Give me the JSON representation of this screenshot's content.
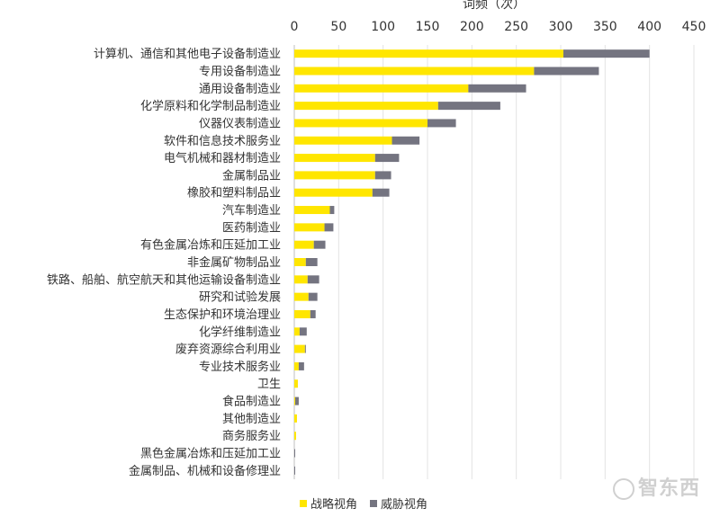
{
  "chart_data": {
    "type": "bar",
    "orientation": "horizontal",
    "stacked": true,
    "xlabel": "词频（次）",
    "xlim": [
      0,
      450
    ],
    "xticks": [
      0,
      50,
      100,
      150,
      200,
      250,
      300,
      350,
      400,
      450
    ],
    "grid": true,
    "legend_position": "bottom",
    "categories": [
      "计算机、通信和其他电子设备制造业",
      "专用设备制造业",
      "通用设备制造业",
      "化学原料和化学制品制造业",
      "仪器仪表制造业",
      "软件和信息技术服务业",
      "电气机械和器材制造业",
      "金属制品业",
      "橡胶和塑料制品业",
      "汽车制造业",
      "医药制造业",
      "有色金属冶炼和压延加工业",
      "非金属矿物制品业",
      "铁路、船舶、航空航天和其他运输设备制造业",
      "研究和试验发展",
      "生态保护和环境治理业",
      "化学纤维制造业",
      "废弃资源综合利用业",
      "专业技术服务业",
      "卫生",
      "食品制造业",
      "其他制造业",
      "商务服务业",
      "黑色金属冶炼和压延加工业",
      "金属制品、机械和设备修理业"
    ],
    "series": [
      {
        "name": "战略视角",
        "color": "#FFE600",
        "values": [
          303,
          270,
          196,
          162,
          150,
          110,
          91,
          91,
          88,
          40,
          34,
          22,
          13,
          15,
          16,
          18,
          6,
          12,
          5,
          4,
          1,
          3,
          2,
          0,
          0
        ]
      },
      {
        "name": "威胁视角",
        "color": "#747480",
        "values": [
          97,
          73,
          65,
          70,
          32,
          31,
          27,
          18,
          19,
          5,
          10,
          13,
          13,
          13,
          10,
          6,
          8,
          1,
          6,
          0,
          4,
          0,
          0,
          1,
          1
        ]
      }
    ]
  },
  "watermark": "智东西"
}
